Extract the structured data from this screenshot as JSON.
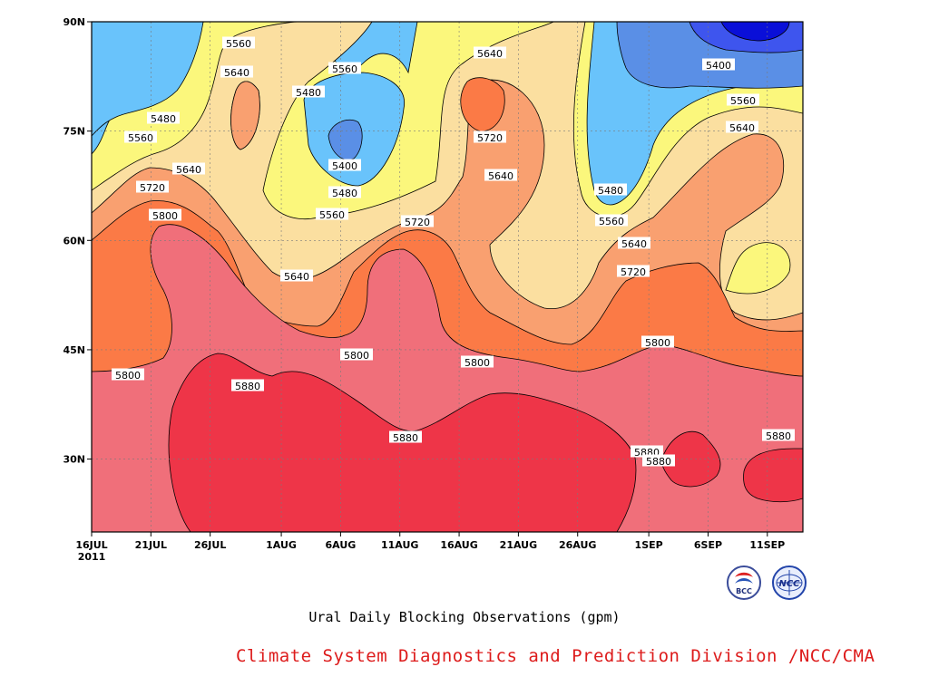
{
  "chart_data": {
    "type": "heatmap",
    "subtype": "filled-contour",
    "title": "",
    "xlabel": "",
    "ylabel": "",
    "x_range": [
      "2011-07-16",
      "2011-09-14"
    ],
    "y_range_deg_north": [
      20,
      90
    ],
    "x_ticks": [
      "16JUL",
      "21JUL",
      "26JUL",
      "1AUG",
      "6AUG",
      "11AUG",
      "16AUG",
      "21AUG",
      "26AUG",
      "1SEP",
      "6SEP",
      "11SEP"
    ],
    "x_tick_year": "2011",
    "y_ticks": [
      "30N",
      "45N",
      "60N",
      "75N",
      "90N"
    ],
    "levels_gpm": [
      5320,
      5400,
      5480,
      5560,
      5640,
      5720,
      5800,
      5880
    ],
    "level_colors": {
      "below_5320": "#0a0fd8",
      "5320_5400": "#3e55ee",
      "5400_5480": "#5a8fe6",
      "5480_5560": "#69c3fb",
      "5560_5640": "#fbf77c",
      "5640_5720": "#fbdfa0",
      "5720_5800": "#f9a070",
      "5800_5880": "#fb7a46",
      "5880_5960": "#f06f7a",
      "above_5960": "#ee3548"
    },
    "contour_labels": [
      "5560",
      "5640",
      "5480",
      "5560",
      "5640",
      "5480",
      "5560",
      "5640",
      "5720",
      "5800",
      "5720",
      "5400",
      "5480",
      "5560",
      "5640",
      "5720",
      "5640",
      "5480",
      "5560",
      "5640",
      "5720",
      "5400",
      "5560",
      "5640",
      "5800",
      "5880",
      "5800",
      "5880",
      "5800",
      "5800",
      "5880",
      "5880",
      "5880"
    ],
    "grid": true,
    "grid_style": "dotted"
  },
  "caption": "Ural Daily Blocking Observations (gpm)",
  "credit": "Climate System Diagnostics and Prediction Division /NCC/CMA",
  "logos": [
    {
      "name": "bcc-logo",
      "text": "BCC"
    },
    {
      "name": "ncc-logo",
      "text": "NCC"
    }
  ]
}
